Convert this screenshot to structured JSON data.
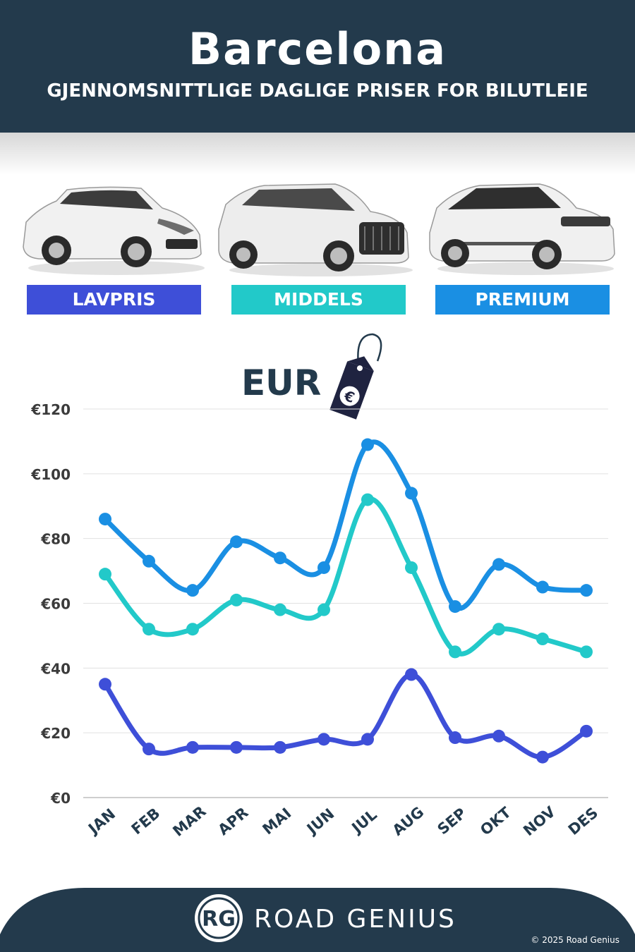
{
  "header": {
    "title": "Barcelona",
    "subtitle": "GJENNOMSNITTLIGE DAGLIGE PRISER FOR BILUTLEIE"
  },
  "legend": [
    {
      "label": "LAVPRIS",
      "color": "#3e4fd8"
    },
    {
      "label": "MIDDELS",
      "color": "#22c9c9"
    },
    {
      "label": "PREMIUM",
      "color": "#1a8fe3"
    }
  ],
  "currency_label": "EUR",
  "tag_icon": "euro-price-tag-icon",
  "chart_data": {
    "type": "line",
    "categories": [
      "JAN",
      "FEB",
      "MAR",
      "APR",
      "MAI",
      "JUN",
      "JUL",
      "AUG",
      "SEP",
      "OKT",
      "NOV",
      "DES"
    ],
    "series": [
      {
        "name": "PREMIUM",
        "color": "#1a8fe3",
        "values": [
          86,
          73,
          64,
          79,
          74,
          71,
          109,
          94,
          59,
          72,
          65,
          64
        ]
      },
      {
        "name": "MIDDELS",
        "color": "#22c9c9",
        "values": [
          69,
          52,
          52,
          61,
          58,
          58,
          92,
          71,
          45,
          52,
          49,
          45
        ]
      },
      {
        "name": "LAVPRIS",
        "color": "#3e4fd8",
        "values": [
          35,
          15,
          15.5,
          15.5,
          15.5,
          18,
          18,
          38,
          18.5,
          19,
          12.5,
          20.5
        ]
      }
    ],
    "yticks": [
      "€0",
      "€20",
      "€40",
      "€60",
      "€80",
      "€100",
      "€120"
    ],
    "ylim": [
      0,
      120
    ],
    "grid": true
  },
  "footer": {
    "logo_text": "RG",
    "brand": "ROAD GENIUS",
    "copyright": "© 2025 Road Genius"
  }
}
